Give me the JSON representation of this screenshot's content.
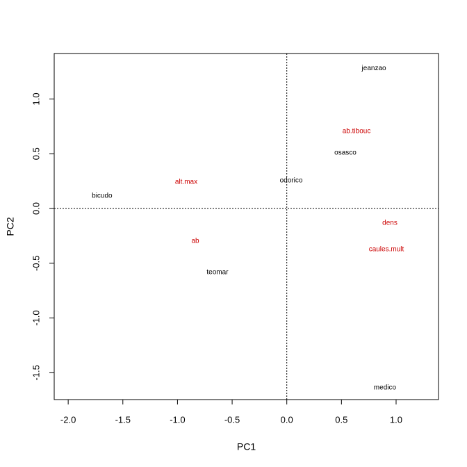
{
  "chart_data": {
    "type": "text-scatter",
    "x_label": "PC1",
    "y_label": "PC2",
    "xlim": [
      -2.128,
      1.388
    ],
    "ylim": [
      -1.745,
      1.415
    ],
    "xticks": [
      {
        "value": -2,
        "label": "-2.0"
      },
      -1.5,
      {
        "value": -1,
        "label": "-1.0"
      },
      -0.5,
      {
        "value": 0,
        "label": "0.0"
      },
      0.5,
      {
        "value": 1,
        "label": "1.0"
      }
    ],
    "yticks": [
      -1.5,
      {
        "value": -1,
        "label": "-1.0"
      },
      -0.5,
      {
        "value": 0,
        "label": "0.0"
      },
      0.5,
      {
        "value": 1,
        "label": "1.0"
      }
    ],
    "vline": 0,
    "hline": 0,
    "series": [
      {
        "color": "#000000",
        "labels": [
          "jeanzao",
          "osasco",
          "odorico",
          "bicudo",
          "teomar",
          "medico"
        ],
        "x": [
          0.797,
          0.536,
          0.04,
          -1.69,
          -0.634,
          0.898
        ],
        "values": [
          1.28,
          0.508,
          0.254,
          0.114,
          -0.584,
          -1.637
        ]
      },
      {
        "color": "#cc0000",
        "labels": [
          "ab.tibouc",
          "alt.max",
          "dens",
          "caules.mult",
          "ab"
        ],
        "x": [
          0.638,
          -0.92,
          0.943,
          0.911,
          -0.837
        ],
        "values": [
          0.704,
          0.241,
          -0.133,
          -0.374,
          -0.298
        ]
      }
    ]
  }
}
